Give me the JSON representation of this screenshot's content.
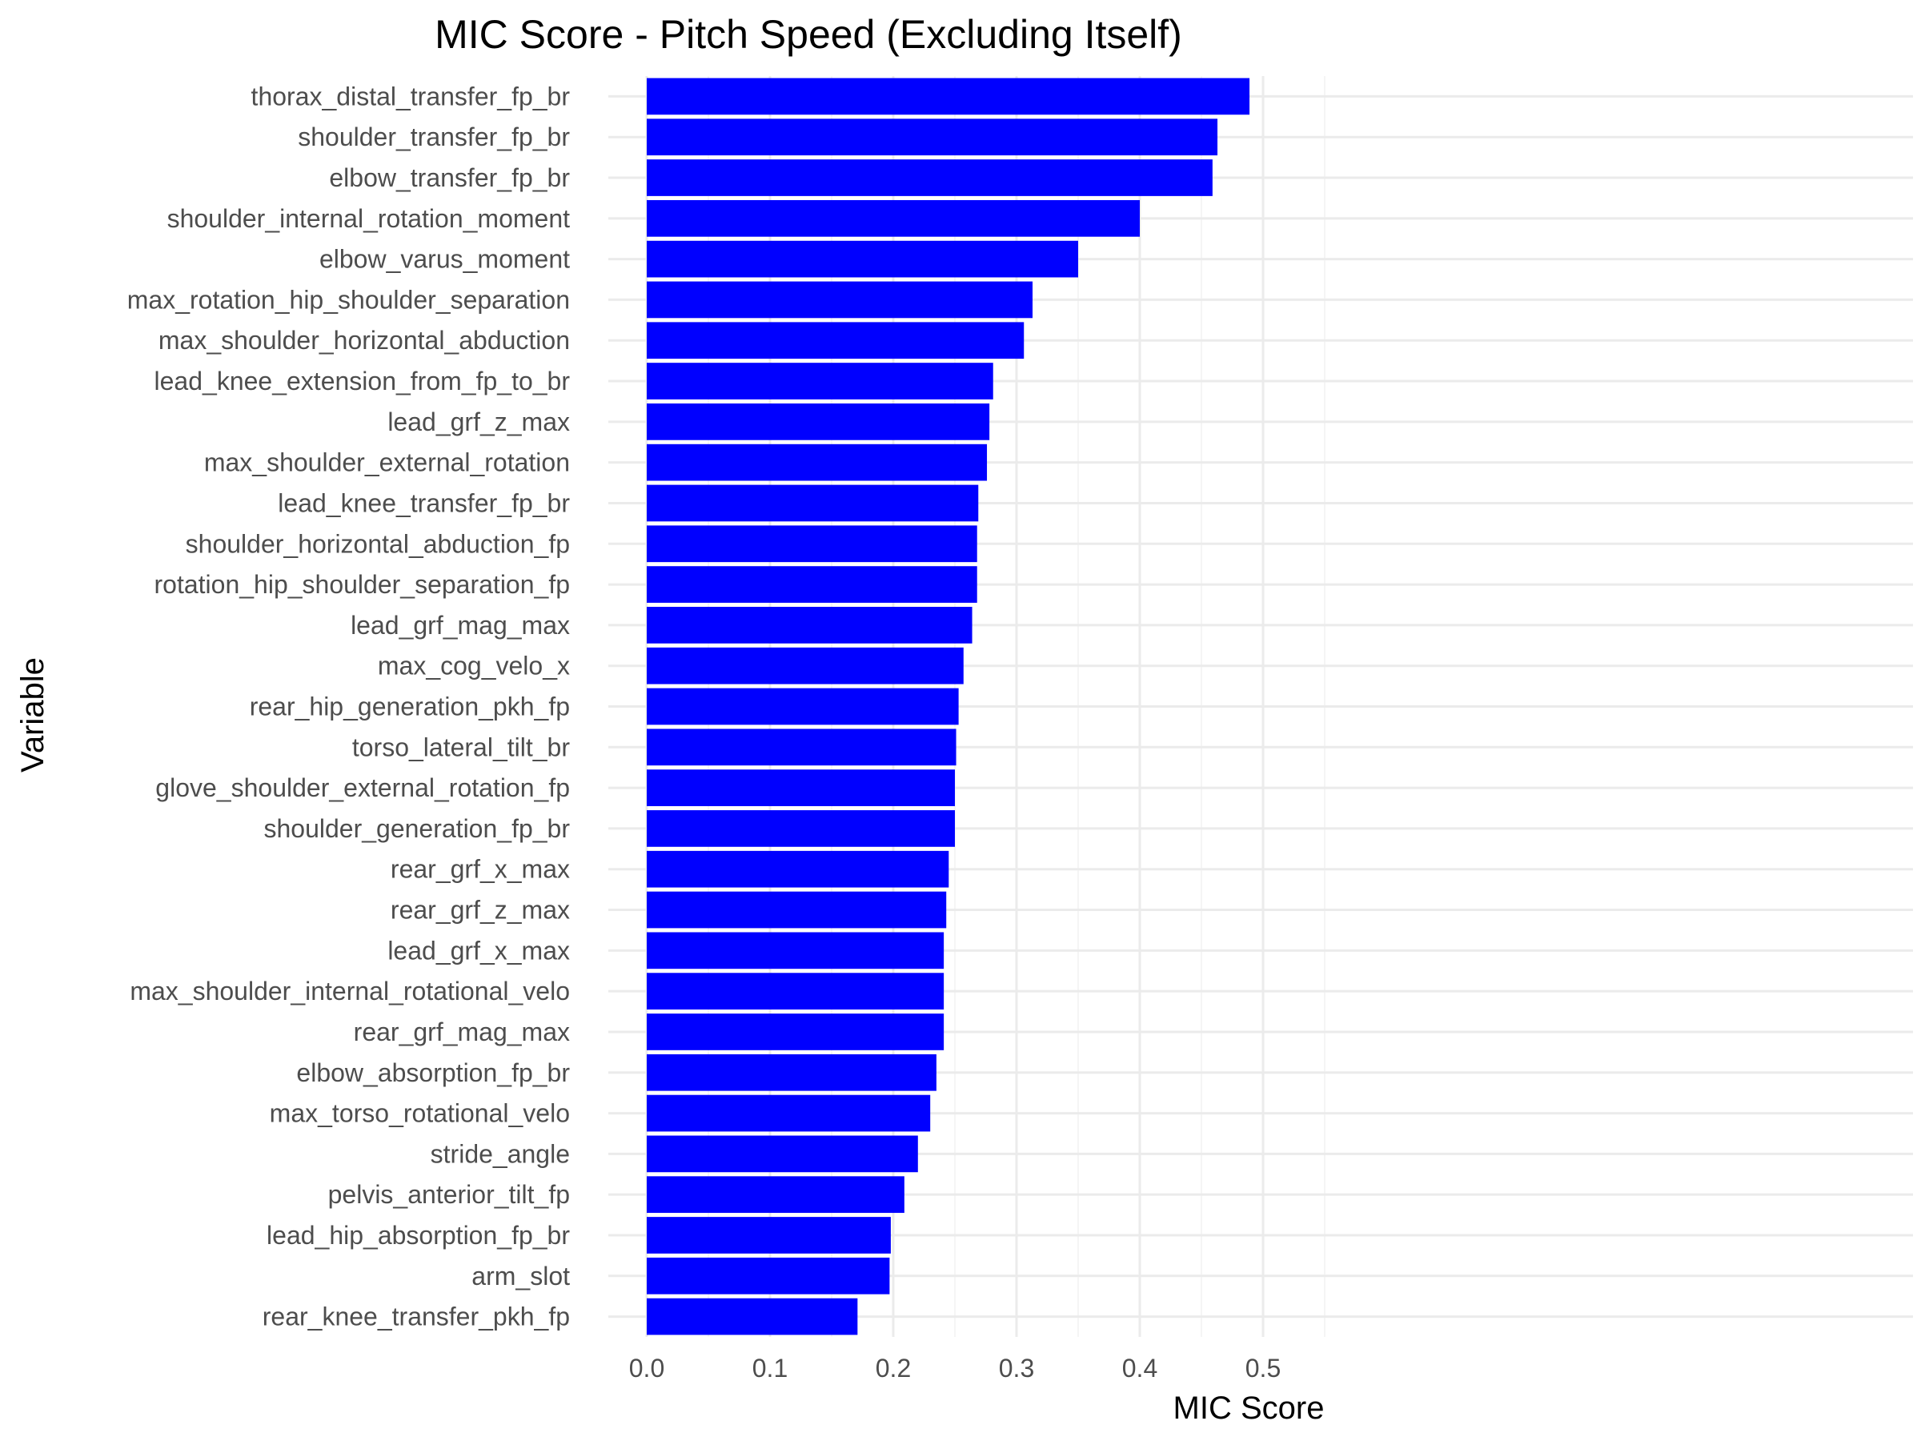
{
  "chart_data": {
    "type": "bar",
    "orientation": "horizontal",
    "title": "MIC Score - Pitch Speed (Excluding Itself)",
    "xlabel": "MIC Score",
    "ylabel": "Variable",
    "xlim": [
      0,
      0.5
    ],
    "xticks": [
      0.0,
      0.1,
      0.2,
      0.3,
      0.4,
      0.5
    ],
    "xtick_labels": [
      "0.0",
      "0.1",
      "0.2",
      "0.3",
      "0.4",
      "0.5"
    ],
    "grid": true,
    "bar_color": "#0000ff",
    "categories": [
      "thorax_distal_transfer_fp_br",
      "shoulder_transfer_fp_br",
      "elbow_transfer_fp_br",
      "shoulder_internal_rotation_moment",
      "elbow_varus_moment",
      "max_rotation_hip_shoulder_separation",
      "max_shoulder_horizontal_abduction",
      "lead_knee_extension_from_fp_to_br",
      "lead_grf_z_max",
      "max_shoulder_external_rotation",
      "lead_knee_transfer_fp_br",
      "shoulder_horizontal_abduction_fp",
      "rotation_hip_shoulder_separation_fp",
      "lead_grf_mag_max",
      "max_cog_velo_x",
      "rear_hip_generation_pkh_fp",
      "torso_lateral_tilt_br",
      "glove_shoulder_external_rotation_fp",
      "shoulder_generation_fp_br",
      "rear_grf_x_max",
      "rear_grf_z_max",
      "lead_grf_x_max",
      "max_shoulder_internal_rotational_velo",
      "rear_grf_mag_max",
      "elbow_absorption_fp_br",
      "max_torso_rotational_velo",
      "stride_angle",
      "pelvis_anterior_tilt_fp",
      "lead_hip_absorption_fp_br",
      "arm_slot",
      "rear_knee_transfer_pkh_fp"
    ],
    "values": [
      0.489,
      0.463,
      0.459,
      0.4,
      0.35,
      0.313,
      0.306,
      0.281,
      0.278,
      0.276,
      0.269,
      0.268,
      0.268,
      0.264,
      0.257,
      0.253,
      0.251,
      0.25,
      0.25,
      0.245,
      0.243,
      0.241,
      0.241,
      0.241,
      0.235,
      0.23,
      0.22,
      0.209,
      0.198,
      0.197,
      0.171
    ]
  }
}
